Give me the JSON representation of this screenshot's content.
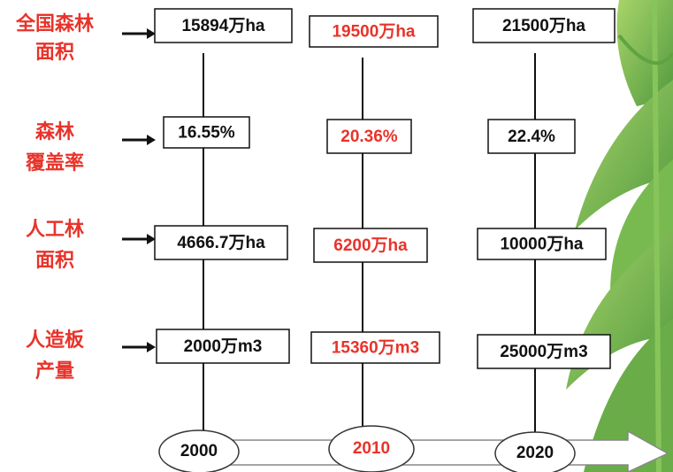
{
  "rows": [
    {
      "label": [
        "全国森林",
        "面积"
      ]
    },
    {
      "label": [
        "森林",
        "覆盖率"
      ]
    },
    {
      "label": [
        "人工林",
        "面积"
      ]
    },
    {
      "label": [
        "人造板",
        "产量"
      ]
    }
  ],
  "columns": [
    {
      "year": "2000",
      "values": [
        "15894万ha",
        "16.55%",
        "4666.7万ha",
        "2000万m3"
      ]
    },
    {
      "year": "2010",
      "values": [
        "19500万ha",
        "20.36%",
        "6200万ha",
        "15360万m3"
      ]
    },
    {
      "year": "2020",
      "values": [
        "21500万ha",
        "22.4%",
        "10000万ha",
        "25000万m3"
      ]
    }
  ]
}
